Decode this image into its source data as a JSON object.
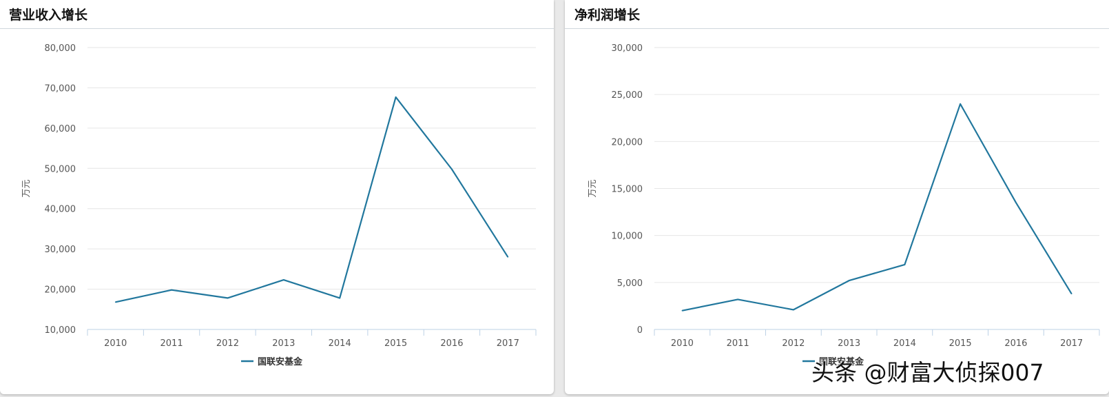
{
  "panels": [
    {
      "title": "营业收入增长"
    },
    {
      "title": "净利润增长"
    }
  ],
  "watermark": "头条 @财富大侦探007",
  "chart_data": [
    {
      "type": "line",
      "title": "营业收入增长",
      "xlabel": "",
      "ylabel": "万元",
      "x": [
        "2010",
        "2011",
        "2012",
        "2013",
        "2014",
        "2015",
        "2016",
        "2017"
      ],
      "ylim": [
        10000,
        80000
      ],
      "yticks": [
        10000,
        20000,
        30000,
        40000,
        50000,
        60000,
        70000,
        80000
      ],
      "ytick_labels": [
        "10,000",
        "20,000",
        "30,000",
        "40,000",
        "50,000",
        "60,000",
        "70,000",
        "80,000"
      ],
      "grid": true,
      "legend_position": "bottom-center",
      "series": [
        {
          "name": "国联安基金",
          "color": "#21779d",
          "values": [
            16800,
            19800,
            17800,
            22300,
            17800,
            67700,
            49800,
            28000
          ]
        }
      ]
    },
    {
      "type": "line",
      "title": "净利润增长",
      "xlabel": "",
      "ylabel": "万元",
      "x": [
        "2010",
        "2011",
        "2012",
        "2013",
        "2014",
        "2015",
        "2016",
        "2017"
      ],
      "ylim": [
        0,
        30000
      ],
      "yticks": [
        0,
        5000,
        10000,
        15000,
        20000,
        25000,
        30000
      ],
      "ytick_labels": [
        "0",
        "5,000",
        "10,000",
        "15,000",
        "20,000",
        "25,000",
        "30,000"
      ],
      "grid": true,
      "legend_position": "bottom-center",
      "series": [
        {
          "name": "国联安基金",
          "color": "#21779d",
          "values": [
            2000,
            3200,
            2100,
            5200,
            6900,
            24000,
            13500,
            3800
          ]
        }
      ]
    }
  ]
}
